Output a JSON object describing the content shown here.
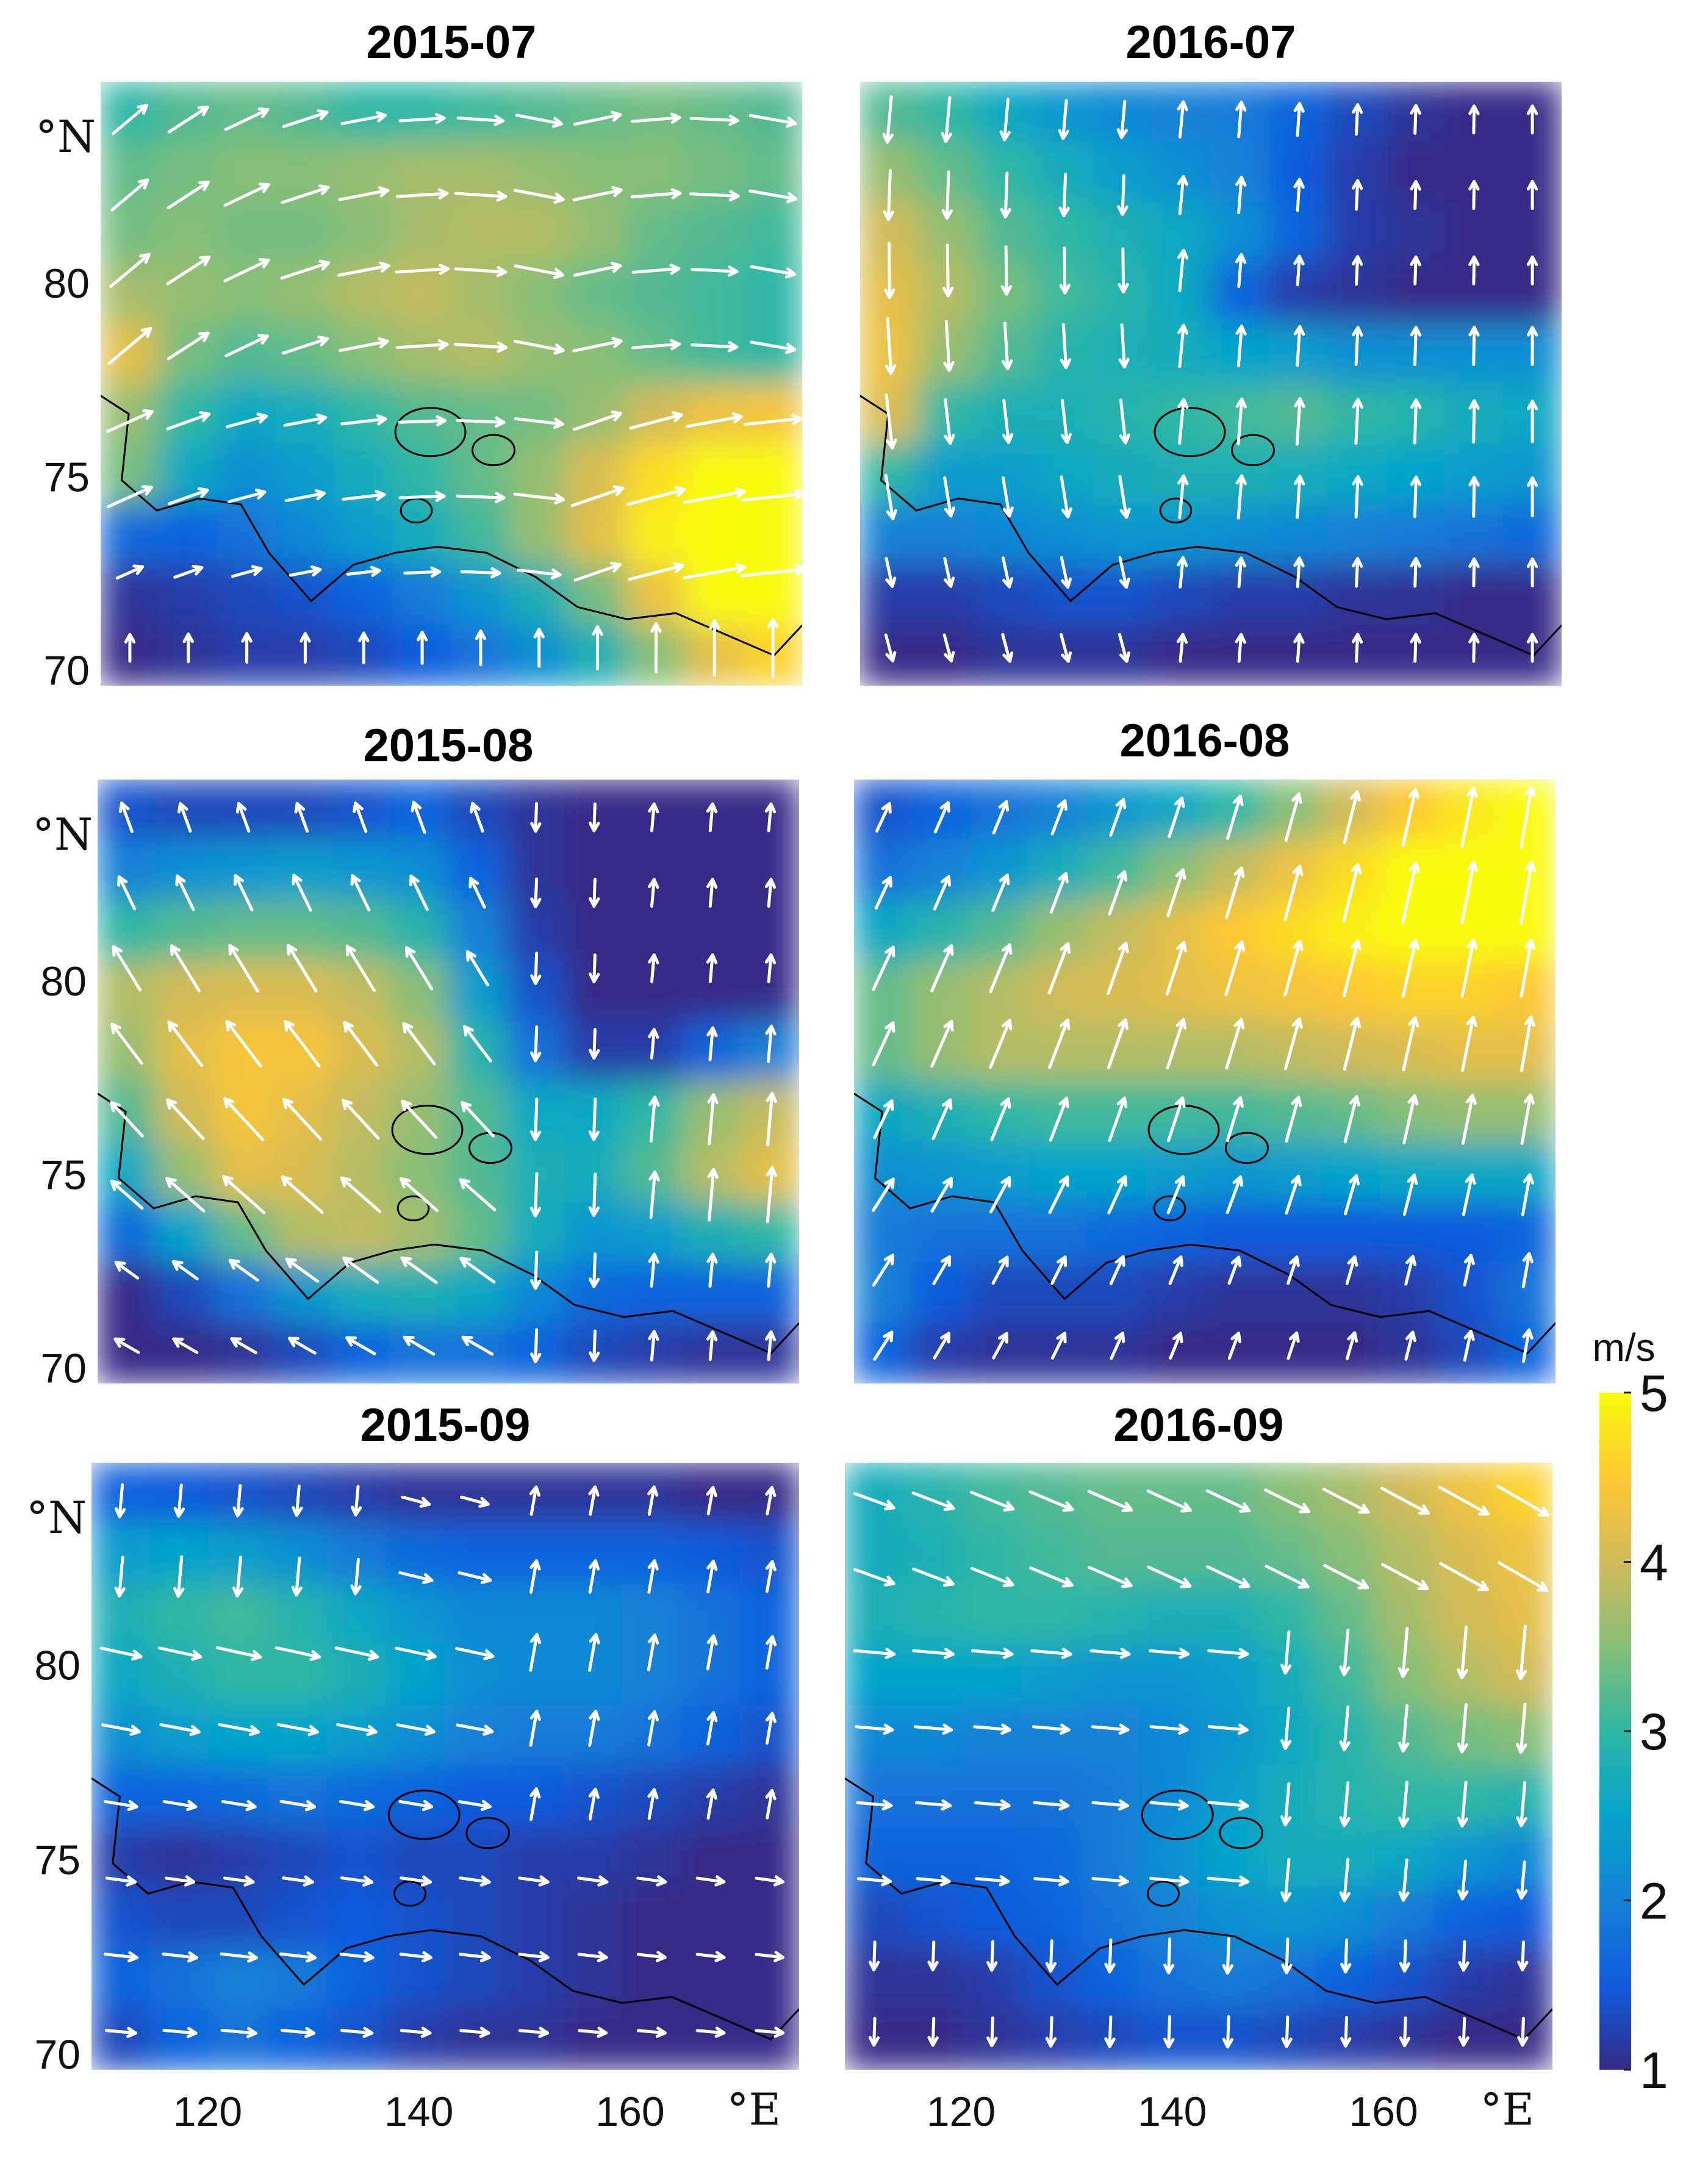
{
  "chart_data": [
    {
      "type": "heatmap",
      "title": "2015-07",
      "ylabel_unit": "°N",
      "yticks": [
        70,
        75,
        80
      ],
      "xlim": [
        109,
        176
      ],
      "ylim": [
        69.6,
        85.2
      ],
      "vector_field": "wind",
      "colorbar_position": "right",
      "speed_field_mps": [
        [
          3.0,
          3.2,
          3.3,
          3.2,
          3.0,
          3.0,
          3.1,
          3.2,
          3.3,
          3.4,
          3.3,
          3.2
        ],
        [
          3.3,
          3.4,
          3.5,
          3.5,
          3.6,
          3.7,
          3.7,
          3.6,
          3.5,
          3.5,
          3.4,
          3.3
        ],
        [
          3.4,
          3.5,
          3.4,
          3.4,
          3.5,
          3.7,
          3.8,
          3.8,
          3.6,
          3.3,
          3.2,
          3.1
        ],
        [
          3.7,
          3.6,
          3.5,
          3.6,
          3.8,
          3.9,
          3.7,
          3.5,
          3.3,
          3.2,
          3.1,
          3.0
        ],
        [
          4.2,
          3.4,
          3.2,
          3.3,
          3.5,
          3.7,
          3.8,
          3.6,
          3.5,
          3.3,
          3.1,
          3.0
        ],
        [
          3.6,
          3.0,
          2.6,
          2.7,
          3.0,
          3.2,
          3.3,
          3.4,
          3.6,
          4.0,
          4.3,
          4.4
        ],
        [
          3.4,
          2.6,
          2.2,
          2.4,
          2.7,
          3.0,
          3.3,
          3.6,
          4.1,
          4.7,
          5.0,
          5.0
        ],
        [
          1.7,
          1.6,
          1.8,
          2.1,
          2.4,
          2.7,
          3.1,
          3.6,
          4.2,
          4.9,
          5.2,
          5.2
        ],
        [
          1.1,
          1.2,
          1.3,
          1.4,
          1.6,
          1.9,
          2.3,
          2.8,
          3.4,
          4.3,
          5.0,
          5.2
        ],
        [
          1.0,
          1.1,
          1.2,
          1.2,
          1.3,
          1.5,
          1.8,
          2.2,
          2.8,
          3.5,
          4.2,
          4.6
        ]
      ]
    },
    {
      "type": "heatmap",
      "title": "2016-07",
      "xlim": [
        109,
        176
      ],
      "ylim": [
        69.6,
        85.2
      ],
      "vector_field": "wind",
      "speed_field_mps": [
        [
          3.2,
          3.0,
          2.6,
          2.3,
          2.1,
          2.0,
          1.9,
          1.6,
          1.3,
          1.1,
          1.0,
          1.0
        ],
        [
          3.6,
          3.3,
          3.0,
          2.7,
          2.4,
          2.2,
          2.0,
          1.5,
          1.2,
          1.0,
          1.0,
          1.0
        ],
        [
          4.0,
          3.6,
          3.2,
          3.0,
          2.8,
          2.6,
          2.2,
          1.6,
          1.2,
          1.1,
          1.0,
          1.0
        ],
        [
          4.2,
          3.8,
          3.4,
          3.1,
          2.9,
          2.6,
          1.6,
          1.2,
          1.1,
          1.0,
          1.0,
          1.0
        ],
        [
          4.3,
          3.6,
          3.2,
          2.9,
          2.8,
          2.7,
          2.5,
          2.4,
          2.2,
          2.2,
          2.2,
          2.2
        ],
        [
          4.1,
          3.0,
          2.8,
          2.8,
          2.9,
          3.0,
          3.1,
          3.2,
          3.0,
          2.9,
          2.7,
          2.6
        ],
        [
          3.0,
          2.4,
          2.4,
          2.6,
          2.7,
          2.8,
          2.8,
          2.7,
          2.6,
          2.5,
          2.4,
          2.3
        ],
        [
          2.0,
          2.0,
          2.1,
          2.2,
          2.3,
          2.3,
          2.2,
          2.1,
          2.0,
          1.9,
          1.8,
          1.7
        ],
        [
          1.2,
          1.2,
          1.3,
          1.4,
          1.4,
          1.3,
          1.2,
          1.2,
          1.1,
          1.1,
          1.0,
          1.0
        ],
        [
          1.0,
          1.0,
          1.1,
          1.1,
          1.1,
          1.0,
          1.0,
          1.0,
          1.0,
          1.0,
          1.0,
          1.0
        ]
      ]
    },
    {
      "type": "heatmap",
      "title": "2015-08",
      "ylabel_unit": "°N",
      "yticks": [
        70,
        75,
        80
      ],
      "xlim": [
        109,
        176
      ],
      "ylim": [
        69.6,
        85.2
      ],
      "vector_field": "wind",
      "speed_field_mps": [
        [
          1.4,
          1.3,
          1.3,
          1.3,
          1.4,
          1.6,
          1.3,
          1.1,
          1.0,
          1.0,
          1.0,
          1.0
        ],
        [
          2.0,
          2.2,
          2.3,
          2.4,
          2.3,
          2.2,
          1.6,
          1.1,
          1.0,
          1.0,
          1.0,
          1.0
        ],
        [
          3.0,
          3.2,
          3.3,
          3.3,
          3.2,
          2.9,
          2.0,
          1.2,
          1.0,
          1.0,
          1.0,
          1.0
        ],
        [
          3.8,
          4.0,
          4.1,
          4.1,
          3.9,
          3.5,
          2.4,
          1.4,
          1.0,
          1.0,
          1.0,
          1.0
        ],
        [
          3.6,
          4.2,
          4.4,
          4.4,
          4.1,
          3.8,
          2.9,
          1.8,
          1.2,
          1.2,
          1.6,
          2.0
        ],
        [
          3.2,
          4.0,
          4.4,
          4.2,
          3.9,
          3.6,
          3.2,
          2.6,
          2.6,
          3.0,
          3.6,
          3.9
        ],
        [
          2.6,
          3.6,
          4.2,
          4.1,
          3.8,
          3.5,
          3.2,
          2.8,
          2.7,
          3.2,
          3.8,
          4.2
        ],
        [
          1.7,
          2.5,
          3.3,
          3.8,
          3.9,
          3.7,
          3.3,
          2.7,
          2.3,
          2.4,
          2.8,
          3.0
        ],
        [
          1.0,
          1.3,
          1.8,
          2.3,
          2.7,
          2.8,
          2.6,
          2.1,
          1.7,
          1.6,
          1.6,
          1.6
        ],
        [
          1.0,
          1.0,
          1.1,
          1.3,
          1.6,
          1.8,
          1.8,
          1.6,
          1.3,
          1.2,
          1.1,
          1.1
        ]
      ]
    },
    {
      "type": "heatmap",
      "title": "2016-08",
      "xlim": [
        109,
        176
      ],
      "ylim": [
        69.6,
        85.2
      ],
      "vector_field": "wind",
      "speed_field_mps": [
        [
          1.4,
          1.6,
          1.8,
          2.0,
          2.3,
          2.6,
          3.0,
          3.5,
          4.0,
          4.5,
          4.8,
          5.0
        ],
        [
          1.8,
          2.0,
          2.3,
          2.7,
          3.1,
          3.5,
          3.9,
          4.3,
          4.7,
          5.0,
          5.1,
          5.1
        ],
        [
          2.6,
          2.9,
          3.2,
          3.6,
          3.9,
          4.2,
          4.5,
          4.7,
          4.9,
          5.0,
          5.0,
          5.0
        ],
        [
          3.3,
          3.6,
          3.8,
          4.0,
          4.1,
          4.2,
          4.3,
          4.4,
          4.5,
          4.6,
          4.6,
          4.5
        ],
        [
          3.3,
          3.6,
          3.8,
          3.8,
          3.8,
          3.8,
          3.8,
          3.9,
          4.0,
          4.1,
          4.2,
          4.2
        ],
        [
          2.6,
          2.8,
          3.0,
          3.1,
          3.1,
          3.1,
          3.1,
          3.2,
          3.3,
          3.5,
          3.6,
          3.6
        ],
        [
          2.2,
          2.3,
          2.4,
          2.5,
          2.5,
          2.4,
          2.3,
          2.4,
          2.5,
          2.6,
          2.6,
          2.6
        ],
        [
          1.9,
          1.8,
          1.8,
          1.8,
          1.7,
          1.6,
          1.5,
          1.5,
          1.5,
          1.5,
          1.5,
          1.6
        ],
        [
          2.0,
          1.5,
          1.3,
          1.3,
          1.3,
          1.2,
          1.1,
          1.1,
          1.1,
          1.2,
          1.4,
          1.8
        ],
        [
          1.6,
          1.2,
          1.1,
          1.1,
          1.1,
          1.0,
          1.0,
          1.0,
          1.0,
          1.1,
          1.3,
          1.6
        ]
      ]
    },
    {
      "type": "heatmap",
      "title": "2015-09",
      "ylabel_unit": "°N",
      "yticks": [
        70,
        75,
        80
      ],
      "xlabel_unit": "°E",
      "xticks": [
        120,
        140,
        160
      ],
      "xlim": [
        109,
        176
      ],
      "ylim": [
        69.6,
        85.2
      ],
      "vector_field": "wind",
      "speed_field_mps": [
        [
          1.6,
          1.5,
          1.4,
          1.3,
          1.2,
          1.1,
          1.1,
          1.1,
          1.1,
          1.1,
          1.0,
          1.0
        ],
        [
          2.4,
          2.5,
          2.4,
          2.2,
          1.9,
          1.7,
          1.6,
          1.6,
          1.6,
          1.6,
          1.5,
          1.4
        ],
        [
          2.8,
          3.0,
          3.1,
          2.9,
          2.6,
          2.3,
          2.1,
          2.1,
          2.1,
          2.0,
          1.8,
          1.6
        ],
        [
          2.6,
          2.8,
          3.0,
          3.0,
          2.8,
          2.5,
          2.2,
          2.1,
          2.1,
          2.0,
          1.8,
          1.6
        ],
        [
          2.2,
          2.4,
          2.5,
          2.5,
          2.4,
          2.2,
          2.0,
          1.9,
          1.9,
          1.8,
          1.6,
          1.4
        ],
        [
          1.6,
          1.6,
          1.7,
          1.8,
          1.7,
          1.6,
          1.5,
          1.5,
          1.4,
          1.3,
          1.2,
          1.1
        ],
        [
          1.2,
          1.1,
          1.2,
          1.3,
          1.4,
          1.3,
          1.3,
          1.2,
          1.2,
          1.1,
          1.0,
          1.0
        ],
        [
          1.4,
          1.3,
          1.3,
          1.4,
          1.5,
          1.4,
          1.3,
          1.2,
          1.1,
          1.0,
          1.0,
          1.0
        ],
        [
          1.6,
          1.8,
          2.0,
          1.9,
          1.6,
          1.4,
          1.3,
          1.2,
          1.1,
          1.0,
          1.0,
          1.0
        ],
        [
          1.3,
          1.6,
          1.8,
          1.6,
          1.4,
          1.2,
          1.1,
          1.1,
          1.0,
          1.0,
          1.0,
          1.0
        ]
      ]
    },
    {
      "type": "heatmap",
      "title": "2016-09",
      "xlabel_unit": "°E",
      "xticks": [
        120,
        140,
        160
      ],
      "xlim": [
        109,
        176
      ],
      "ylim": [
        69.6,
        85.2
      ],
      "vector_field": "wind",
      "speed_field_mps": [
        [
          2.7,
          2.9,
          3.1,
          3.2,
          3.3,
          3.3,
          3.3,
          3.5,
          3.7,
          4.0,
          4.3,
          4.6
        ],
        [
          2.7,
          2.8,
          3.0,
          3.1,
          3.2,
          3.2,
          3.2,
          3.3,
          3.5,
          3.8,
          4.1,
          4.3
        ],
        [
          2.8,
          2.9,
          3.0,
          3.0,
          2.9,
          2.8,
          2.8,
          3.0,
          3.3,
          3.7,
          4.0,
          4.2
        ],
        [
          2.5,
          2.5,
          2.5,
          2.4,
          2.3,
          2.3,
          2.4,
          2.7,
          3.1,
          3.5,
          3.8,
          4.0
        ],
        [
          2.1,
          2.1,
          2.0,
          2.0,
          2.0,
          2.1,
          2.3,
          2.6,
          2.9,
          3.2,
          3.4,
          3.5
        ],
        [
          1.8,
          1.8,
          1.8,
          1.8,
          1.9,
          2.1,
          2.4,
          2.7,
          2.9,
          3.0,
          3.0,
          2.9
        ],
        [
          1.6,
          1.6,
          1.6,
          1.7,
          1.9,
          2.2,
          2.5,
          2.7,
          2.7,
          2.6,
          2.3,
          2.1
        ],
        [
          1.3,
          1.4,
          1.5,
          1.6,
          1.8,
          2.0,
          2.2,
          2.3,
          2.2,
          1.9,
          1.6,
          1.5
        ],
        [
          1.1,
          1.1,
          1.2,
          1.4,
          1.6,
          1.8,
          1.9,
          1.8,
          1.6,
          1.4,
          1.2,
          1.1
        ],
        [
          1.0,
          1.0,
          1.1,
          1.2,
          1.3,
          1.4,
          1.4,
          1.3,
          1.2,
          1.1,
          1.0,
          1.0
        ]
      ]
    }
  ],
  "colorbar": {
    "unit": "m/s",
    "ticks": [
      "1",
      "2",
      "3",
      "4",
      "5"
    ],
    "range": [
      1,
      5
    ],
    "colormap": "parula"
  },
  "colors": {
    "arrow": "#ffffff",
    "coastline": "#000000",
    "parula": [
      "#352a87",
      "#0f5cdd",
      "#1481d6",
      "#06a4ca",
      "#2eb7a4",
      "#87bf77",
      "#d1bb59",
      "#fec832",
      "#f9fb0e"
    ]
  }
}
